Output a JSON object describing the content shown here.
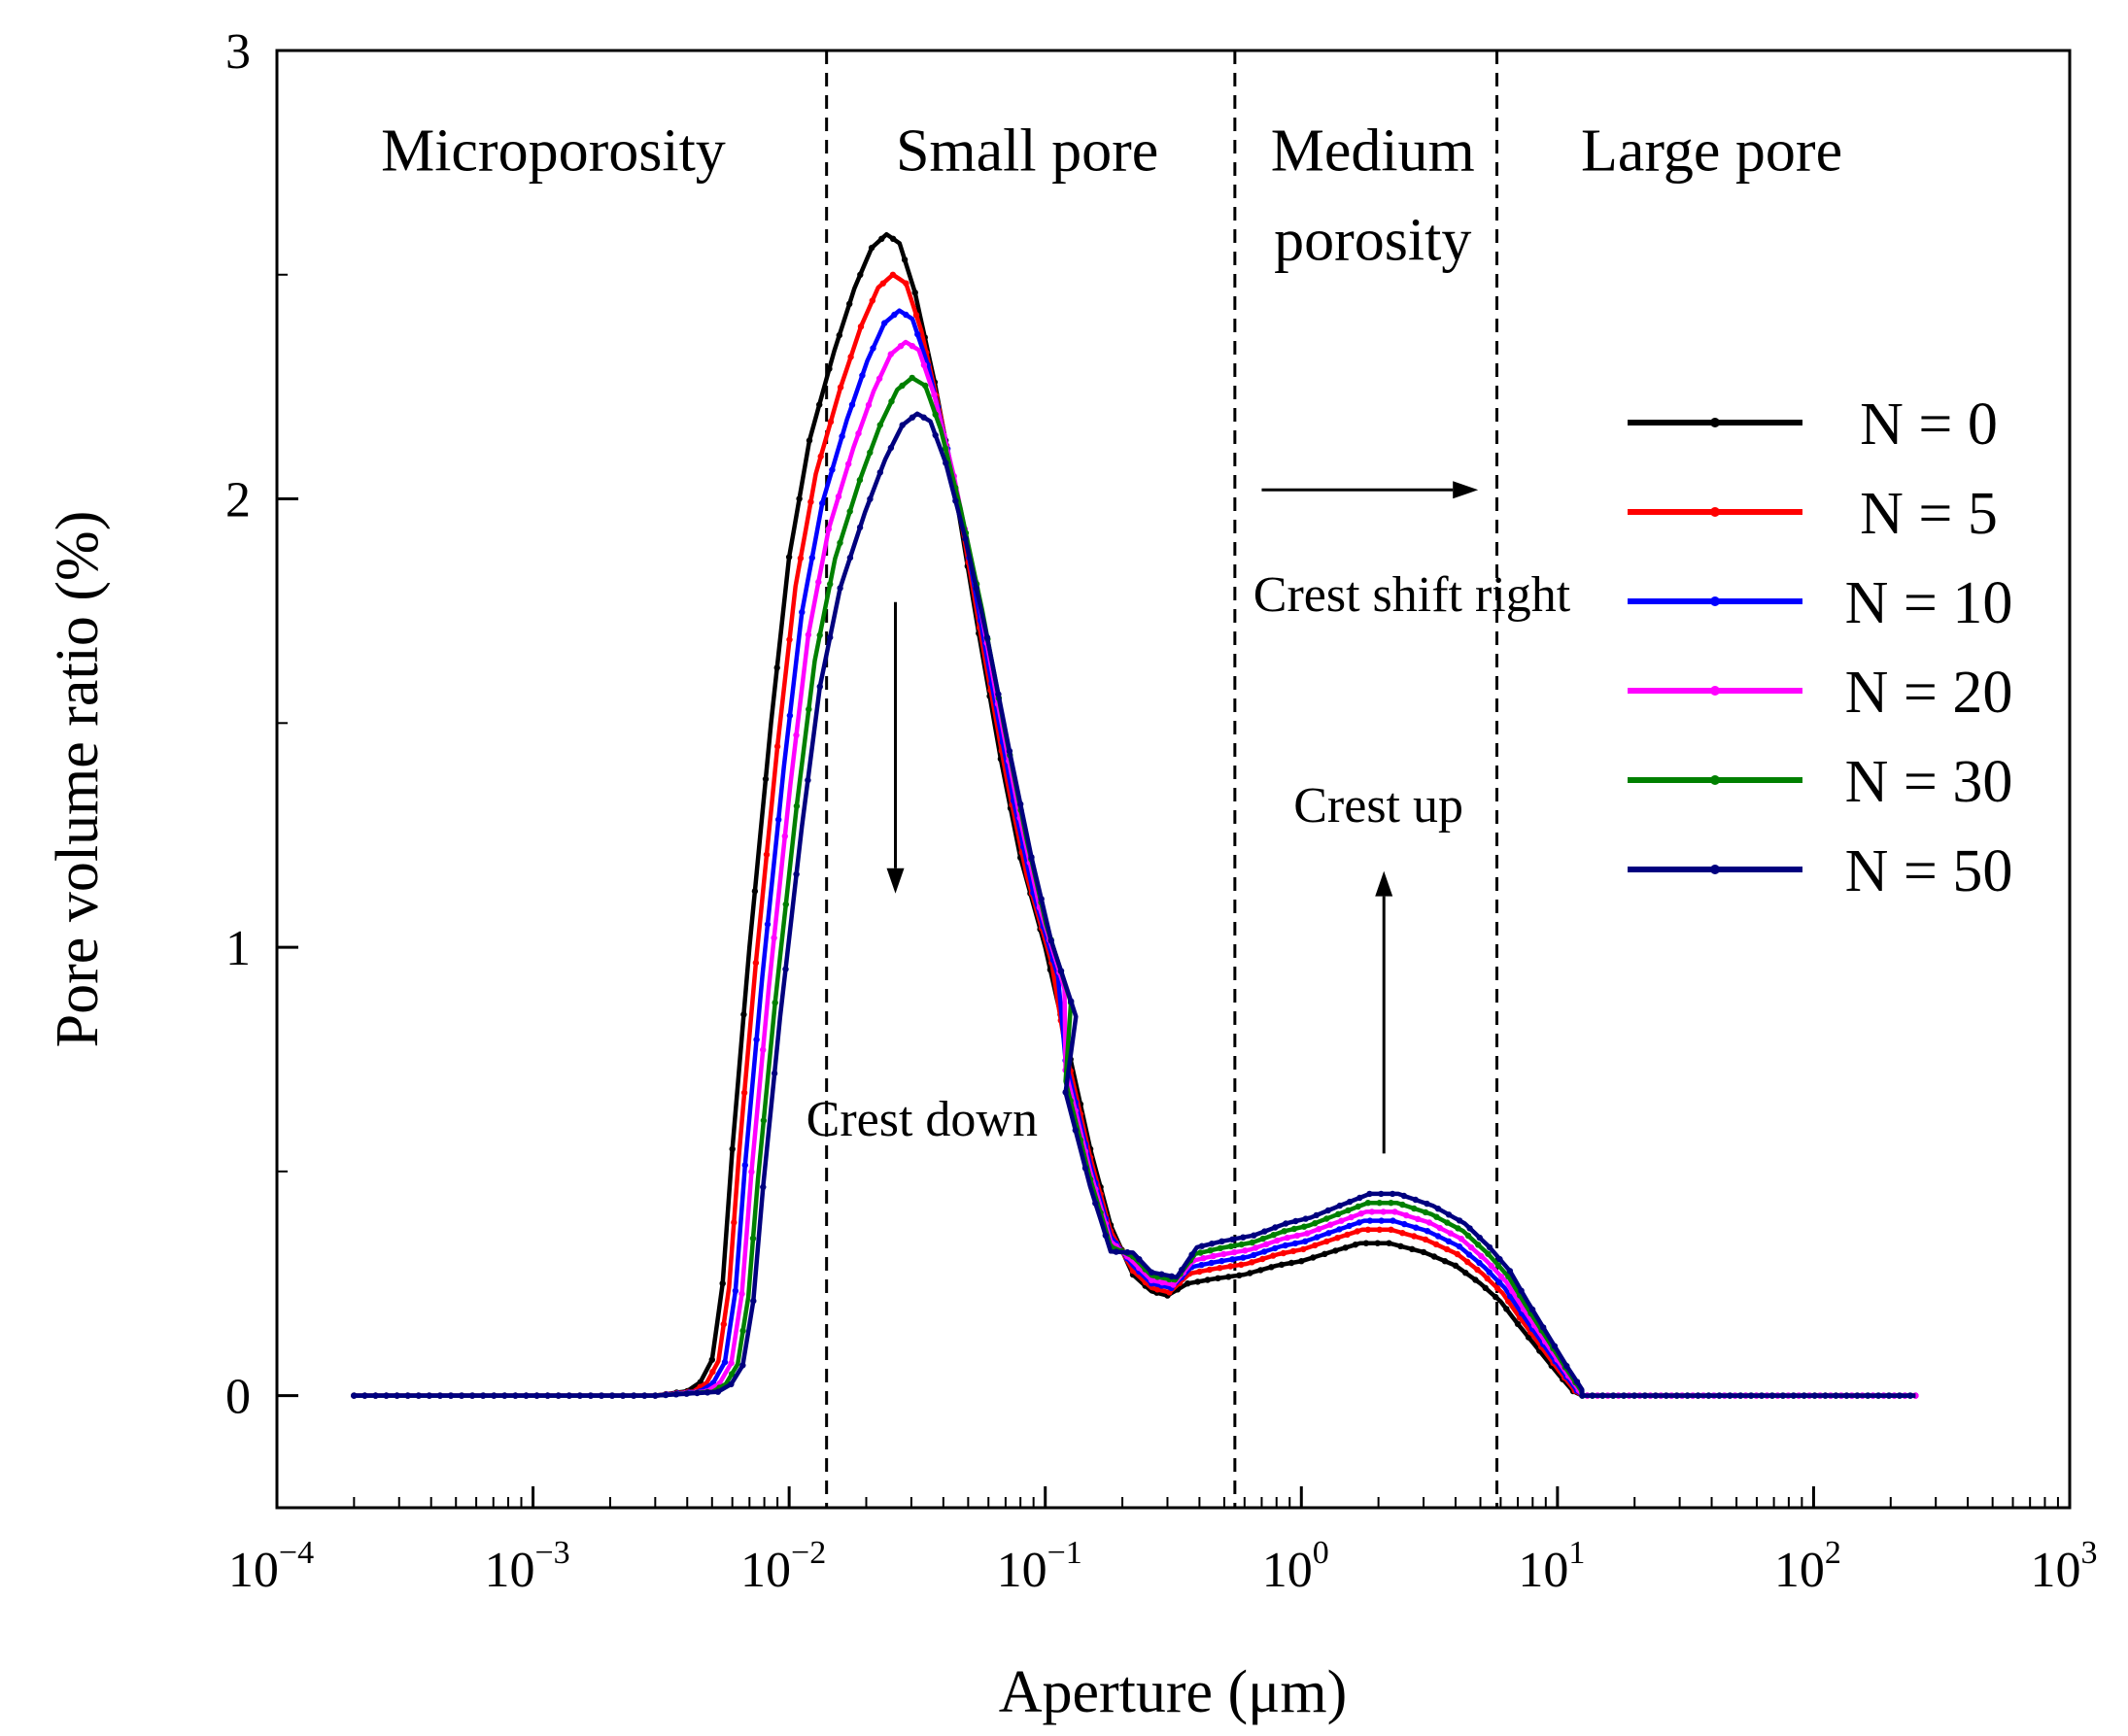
{
  "chart_data": {
    "type": "line",
    "x_scale": "log",
    "xlabel": "Aperture (μm)",
    "ylabel": "Pore volume ratio (%)",
    "xlim": [
      0.0001,
      1000
    ],
    "ylim": [
      -0.25,
      3
    ],
    "x_ticks": [
      {
        "value": 0.0001,
        "base": "10",
        "exp": "−4"
      },
      {
        "value": 0.001,
        "base": "10",
        "exp": "−3"
      },
      {
        "value": 0.01,
        "base": "10",
        "exp": "−2"
      },
      {
        "value": 0.1,
        "base": "10",
        "exp": "−1"
      },
      {
        "value": 1,
        "base": "10",
        "exp": "0"
      },
      {
        "value": 10,
        "base": "10",
        "exp": "1"
      },
      {
        "value": 100,
        "base": "10",
        "exp": "2"
      },
      {
        "value": 1000,
        "base": "10",
        "exp": "3"
      }
    ],
    "y_ticks": [
      {
        "value": 0,
        "label": "0"
      },
      {
        "value": 1,
        "label": "1"
      },
      {
        "value": 2,
        "label": "2"
      },
      {
        "value": 3,
        "label": "3"
      }
    ],
    "region_boundaries": [
      0.014,
      0.55,
      5.8
    ],
    "region_labels": [
      {
        "lines": [
          "Microporosity"
        ],
        "x": 0.0012,
        "y": 2.78
      },
      {
        "lines": [
          "Small pore"
        ],
        "x": 0.085,
        "y": 2.78
      },
      {
        "lines": [
          "Medium",
          "porosity"
        ],
        "x": 1.9,
        "y": 2.78
      },
      {
        "lines": [
          "Large pore"
        ],
        "x": 40,
        "y": 2.78
      }
    ],
    "annotations": [
      {
        "text": "Crest down",
        "x": 0.033,
        "y": 0.58
      },
      {
        "text": "Crest up",
        "x": 2.0,
        "y": 1.28
      },
      {
        "text": "Crest shift right",
        "x": 2.7,
        "y": 1.75
      }
    ],
    "arrows": [
      {
        "name": "crest-down-arrow",
        "x1": 0.026,
        "y1": 1.77,
        "x2": 0.026,
        "y2": 1.12
      },
      {
        "name": "crest-up-arrow",
        "x1": 2.1,
        "y1": 0.54,
        "x2": 2.1,
        "y2": 1.17
      },
      {
        "name": "crest-shift-right-arrow",
        "x1": 0.7,
        "y1": 2.02,
        "x2": 4.9,
        "y2": 2.02
      }
    ],
    "series": [
      {
        "name": "N = 0",
        "color": "#000000",
        "x_shift": 0.0,
        "dip_scale": 0.93,
        "x": [
          0.0002,
          0.003,
          0.004,
          0.0045,
          0.005,
          0.0055,
          0.006,
          0.007,
          0.0085,
          0.01,
          0.012,
          0.015,
          0.018,
          0.021,
          0.024,
          0.027,
          0.031,
          0.037,
          0.045,
          0.055,
          0.067,
          0.08,
          0.1,
          0.12,
          0.15,
          0.18,
          0.22,
          0.26,
          0.3,
          0.36,
          0.45,
          0.6,
          0.8,
          1.0,
          1.3,
          1.7,
          2.2,
          3.0,
          4.0,
          5.0,
          6.0,
          7.0,
          8.5,
          10,
          11.5,
          12.5,
          15,
          250
        ],
        "y": [
          0,
          0,
          0.01,
          0.03,
          0.08,
          0.25,
          0.55,
          1.0,
          1.5,
          1.87,
          2.13,
          2.33,
          2.47,
          2.56,
          2.59,
          2.57,
          2.46,
          2.26,
          2.0,
          1.7,
          1.42,
          1.2,
          1.0,
          0.8,
          0.55,
          0.38,
          0.29,
          0.25,
          0.24,
          0.25,
          0.26,
          0.27,
          0.29,
          0.3,
          0.32,
          0.34,
          0.34,
          0.32,
          0.29,
          0.25,
          0.21,
          0.16,
          0.1,
          0.05,
          0.01,
          0,
          0,
          0
        ]
      },
      {
        "name": "N = 5",
        "color": "#ff0000",
        "x_shift": 0.025,
        "dip_scale": 0.96,
        "x": [
          0.0002,
          0.003,
          0.004,
          0.0045,
          0.005,
          0.0055,
          0.006,
          0.007,
          0.0085,
          0.01,
          0.012,
          0.015,
          0.018,
          0.021,
          0.024,
          0.027,
          0.031,
          0.037,
          0.045,
          0.055,
          0.067,
          0.08,
          0.1,
          0.12,
          0.15,
          0.18,
          0.22,
          0.26,
          0.3,
          0.36,
          0.45,
          0.6,
          0.8,
          1.0,
          1.3,
          1.7,
          2.2,
          3.0,
          4.0,
          5.0,
          6.0,
          7.0,
          8.5,
          10,
          11.5,
          12.5,
          15,
          250
        ],
        "y": [
          0,
          0,
          0.01,
          0.03,
          0.08,
          0.25,
          0.55,
          1.0,
          1.5,
          1.87,
          2.13,
          2.33,
          2.47,
          2.56,
          2.59,
          2.57,
          2.46,
          2.26,
          2.0,
          1.7,
          1.42,
          1.2,
          1.0,
          0.8,
          0.55,
          0.38,
          0.29,
          0.25,
          0.24,
          0.25,
          0.26,
          0.27,
          0.29,
          0.3,
          0.32,
          0.34,
          0.34,
          0.32,
          0.29,
          0.25,
          0.21,
          0.16,
          0.1,
          0.05,
          0.01,
          0,
          0,
          0
        ],
        "peak": 2.5,
        "hump": 0.37
      },
      {
        "name": "N = 10",
        "color": "#0000ff",
        "x_shift": 0.05,
        "dip_scale": 1.0,
        "peak": 2.42,
        "hump": 0.39
      },
      {
        "name": "N = 20",
        "color": "#ff00ff",
        "x_shift": 0.075,
        "dip_scale": 1.03,
        "peak": 2.35,
        "hump": 0.41
      },
      {
        "name": "N = 30",
        "color": "#008000",
        "x_shift": 0.1,
        "dip_scale": 1.07,
        "peak": 2.27,
        "hump": 0.43
      },
      {
        "name": "N = 50",
        "color": "#00007f",
        "x_shift": 0.12,
        "dip_scale": 1.1,
        "peak": 2.19,
        "hump": 0.45
      }
    ]
  }
}
